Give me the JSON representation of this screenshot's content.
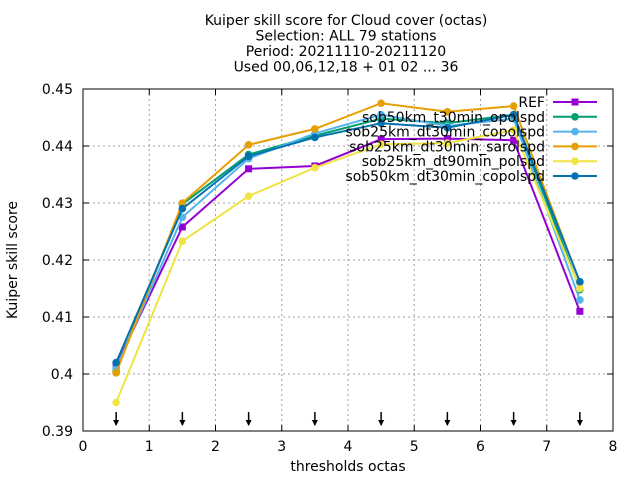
{
  "chart_data": {
    "type": "line",
    "title_lines": [
      "Kuiper skill score  for Cloud cover (octas)",
      "Selection: ALL     79 stations",
      "Period: 20211110-20211120",
      "Used 00,06,12,18 + 01 02 ... 36"
    ],
    "xlabel": "thresholds octas",
    "ylabel": "Kuiper skill score",
    "xlim": [
      0,
      8
    ],
    "ylim": [
      0.39,
      0.45
    ],
    "xticks": [
      0,
      1,
      2,
      3,
      4,
      5,
      6,
      7,
      8
    ],
    "xtick_labels": [
      "0",
      "1",
      "2",
      "3",
      "4",
      "5",
      "6",
      "7",
      "8"
    ],
    "yticks": [
      0.39,
      0.4,
      0.41,
      0.42,
      0.43,
      0.44,
      0.45
    ],
    "ytick_labels": [
      "0.39",
      "0.4",
      "0.41",
      "0.42",
      "0.43",
      "0.44",
      "0.45"
    ],
    "grid": true,
    "legend_position": "top-right",
    "threshold_markers": [
      0.5,
      1.5,
      2.5,
      3.5,
      4.5,
      5.5,
      6.5,
      7.5
    ],
    "x": [
      0.5,
      1.5,
      2.5,
      3.5,
      4.5,
      5.5,
      6.5,
      7.5
    ],
    "series": [
      {
        "name": "REF",
        "legend_text": "REF",
        "color": "#9400d3",
        "marker": "square",
        "values": [
          0.4015,
          0.4258,
          0.436,
          0.4365,
          0.4412,
          0.4413,
          0.441,
          0.411
        ]
      },
      {
        "name": "sob50km_t30min_opolspd",
        "legend_text": "sob50km_t30min_opolspd",
        "color": "#009e73",
        "marker": "circle",
        "values": [
          0.4005,
          0.4298,
          0.4385,
          0.4418,
          0.4448,
          0.444,
          0.4455,
          0.4148
        ]
      },
      {
        "name": "sob25km_d t30min_c opolspd",
        "legend_text": "sob25km_dt30min_copolspd",
        "color": "#56b4e9",
        "marker": "circle",
        "values": [
          0.401,
          0.4275,
          0.4378,
          0.4422,
          0.4455,
          0.4435,
          0.4448,
          0.413
        ]
      },
      {
        "name": "sob25km_d t30min_s arolspd",
        "legend_text": "sob25km_dt30min_sarolspd",
        "color": "#e69f00",
        "marker": "circle",
        "values": [
          0.4002,
          0.43,
          0.4402,
          0.443,
          0.4475,
          0.446,
          0.447,
          0.416
        ]
      },
      {
        "name": "sob25km_d t90min_p olspd",
        "legend_text": "sob25km_dt90min_polspd",
        "color": "#f0e442",
        "marker": "circle",
        "values": [
          0.395,
          0.4233,
          0.4312,
          0.4362,
          0.4403,
          0.4405,
          0.4428,
          0.415
        ]
      },
      {
        "name": "sob50km_d t30min_c opolspd",
        "legend_text": "sob50km_dt30min_copolspd",
        "color": "#0072b2",
        "marker": "circle",
        "values": [
          0.402,
          0.429,
          0.4382,
          0.4415,
          0.444,
          0.4432,
          0.4455,
          0.4162
        ]
      }
    ]
  }
}
